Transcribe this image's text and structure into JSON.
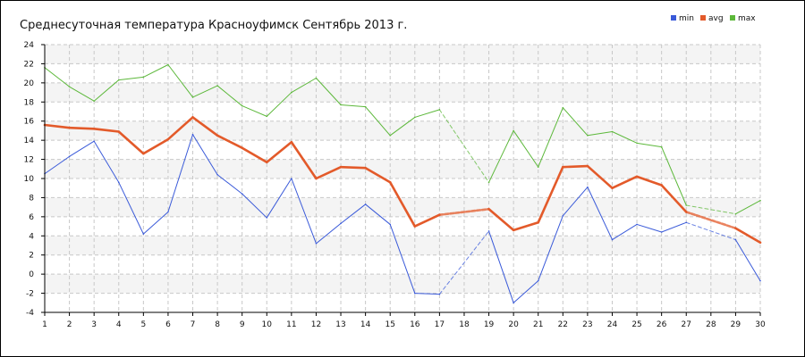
{
  "chart_data": {
    "type": "line",
    "title": "Среднесуточная температура Красноуфимск  Сентябрь 2013 г.",
    "xlabel": "",
    "ylabel": "",
    "x": [
      1,
      2,
      3,
      4,
      5,
      6,
      7,
      8,
      9,
      10,
      11,
      12,
      13,
      14,
      15,
      16,
      17,
      18,
      19,
      20,
      21,
      22,
      23,
      24,
      25,
      26,
      27,
      28,
      29,
      30
    ],
    "xtick_labels": [
      "1",
      "2",
      "3",
      "4",
      "5",
      "6",
      "7",
      "8",
      "9",
      "10",
      "11",
      "12",
      "13",
      "14",
      "15",
      "16",
      "17",
      "18",
      "19",
      "20",
      "21",
      "22",
      "23",
      "24",
      "25",
      "26",
      "27",
      "28",
      "29",
      "30"
    ],
    "xlim": [
      1,
      30
    ],
    "ylim": [
      -4,
      24
    ],
    "ytick_labels": [
      "-4",
      "-2",
      "0",
      "2",
      "4",
      "6",
      "8",
      "10",
      "12",
      "14",
      "16",
      "18",
      "20",
      "22",
      "24"
    ],
    "grid": true,
    "legend": "top-right",
    "series": [
      {
        "name": "min",
        "color": "#3a5ad9",
        "points": [
          [
            1,
            10.5
          ],
          [
            2,
            12.3
          ],
          [
            3,
            13.9
          ],
          [
            4,
            9.6
          ],
          [
            5,
            4.2
          ],
          [
            6,
            6.5
          ],
          [
            7,
            14.6
          ],
          [
            8,
            10.4
          ],
          [
            9,
            8.4
          ],
          [
            10,
            5.9
          ],
          [
            11,
            10.0
          ],
          [
            12,
            3.2
          ],
          [
            13,
            5.3
          ],
          [
            14,
            7.3
          ],
          [
            15,
            5.2
          ],
          [
            16,
            -2.0
          ],
          [
            17,
            -2.1
          ],
          [
            19,
            4.5
          ],
          [
            20,
            -3.0
          ],
          [
            21,
            -0.7
          ],
          [
            22,
            6.1
          ],
          [
            23,
            9.1
          ],
          [
            24,
            3.6
          ],
          [
            25,
            5.2
          ],
          [
            26,
            4.4
          ],
          [
            27,
            5.4
          ],
          [
            29,
            3.6
          ],
          [
            30,
            -0.7
          ]
        ]
      },
      {
        "name": "avg",
        "color": "#e35a2a",
        "points": [
          [
            1,
            15.6
          ],
          [
            2,
            15.3
          ],
          [
            3,
            15.2
          ],
          [
            4,
            14.9
          ],
          [
            5,
            12.6
          ],
          [
            6,
            14.1
          ],
          [
            7,
            16.4
          ],
          [
            8,
            14.5
          ],
          [
            9,
            13.2
          ],
          [
            10,
            11.7
          ],
          [
            11,
            13.8
          ],
          [
            12,
            10.0
          ],
          [
            13,
            11.2
          ],
          [
            14,
            11.1
          ],
          [
            15,
            9.6
          ],
          [
            16,
            5.0
          ],
          [
            17,
            6.2
          ],
          [
            19,
            6.8
          ],
          [
            20,
            4.6
          ],
          [
            21,
            5.4
          ],
          [
            22,
            11.2
          ],
          [
            23,
            11.3
          ],
          [
            24,
            9.0
          ],
          [
            25,
            10.2
          ],
          [
            26,
            9.3
          ],
          [
            27,
            6.5
          ],
          [
            29,
            4.8
          ],
          [
            30,
            3.3
          ]
        ]
      },
      {
        "name": "max",
        "color": "#5cb83a",
        "points": [
          [
            1,
            21.6
          ],
          [
            2,
            19.6
          ],
          [
            3,
            18.1
          ],
          [
            4,
            20.3
          ],
          [
            5,
            20.6
          ],
          [
            6,
            21.9
          ],
          [
            7,
            18.5
          ],
          [
            8,
            19.7
          ],
          [
            9,
            17.6
          ],
          [
            10,
            16.5
          ],
          [
            11,
            19.0
          ],
          [
            12,
            20.5
          ],
          [
            13,
            17.7
          ],
          [
            14,
            17.5
          ],
          [
            15,
            14.5
          ],
          [
            16,
            16.4
          ],
          [
            17,
            17.2
          ],
          [
            19,
            9.6
          ],
          [
            20,
            15.0
          ],
          [
            21,
            11.2
          ],
          [
            22,
            17.4
          ],
          [
            23,
            14.5
          ],
          [
            24,
            14.9
          ],
          [
            25,
            13.7
          ],
          [
            26,
            13.3
          ],
          [
            27,
            7.2
          ],
          [
            29,
            6.3
          ],
          [
            30,
            7.7
          ]
        ]
      }
    ]
  }
}
